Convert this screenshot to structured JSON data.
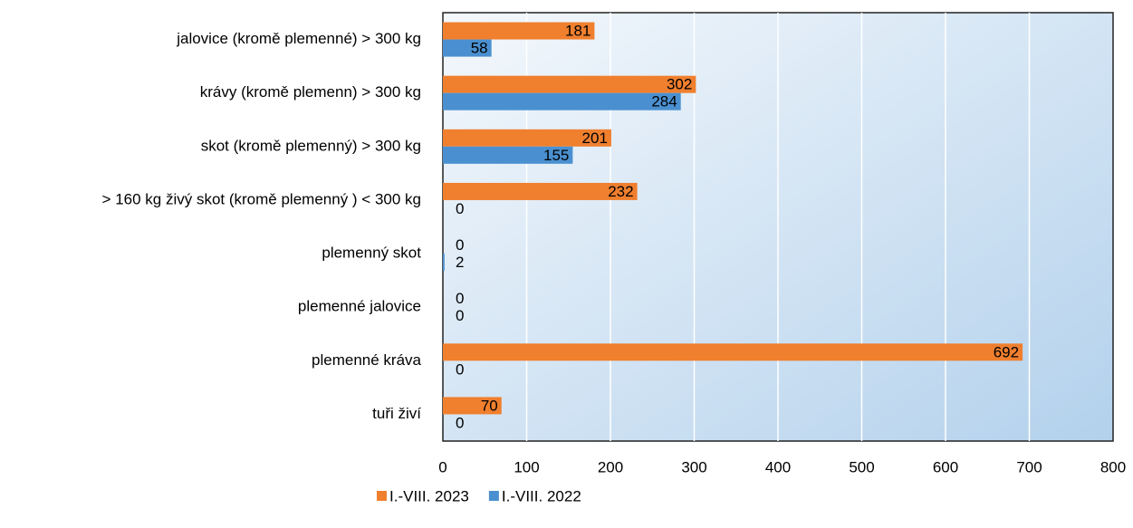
{
  "chart_data": {
    "type": "barh",
    "categories": [
      "jalovice (kromě plemenné) > 300 kg",
      "krávy (kromě plemenn) > 300 kg",
      "skot (kromě plemenný) > 300 kg",
      "> 160 kg živý skot  (kromě plemenný ) < 300 kg",
      "plemenný skot",
      "plemenné jalovice",
      "plemenné kráva",
      "tuři živí"
    ],
    "series": [
      {
        "name": "I.-VIII. 2023",
        "color": "#f07f2e",
        "values": [
          181,
          302,
          201,
          232,
          0,
          0,
          692,
          70
        ]
      },
      {
        "name": "I.-VIII. 2022",
        "color": "#4a90d0",
        "values": [
          58,
          284,
          155,
          0,
          2,
          0,
          0,
          0
        ]
      }
    ],
    "xlim": [
      0,
      800
    ],
    "xticks": [
      0,
      100,
      200,
      300,
      400,
      500,
      600,
      700,
      800
    ],
    "grid": true,
    "legend": "bottom"
  }
}
